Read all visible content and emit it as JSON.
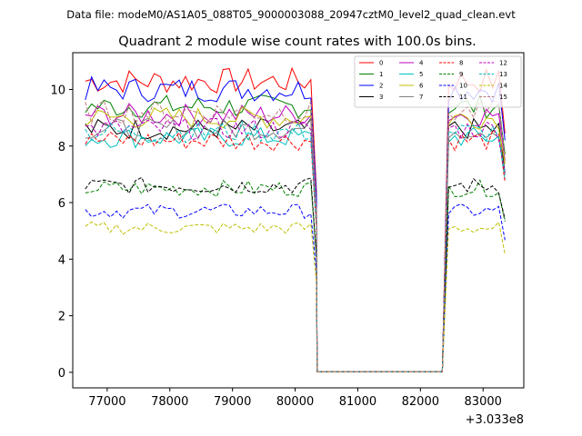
{
  "chart_data": {
    "type": "line",
    "suptitle": "Data file: modeM0/AS1A05_088T05_9000003088_20947cztM0_level2_quad_clean.evt",
    "title": "Quadrant 2 module wise count rates with 100.0s bins.",
    "xlabel": "",
    "ylabel": "",
    "x_offset_label": "+3.033e8",
    "xlim": [
      76450,
      83650
    ],
    "ylim": [
      -0.55,
      11.3
    ],
    "x_ticks": [
      77000,
      78000,
      79000,
      80000,
      81000,
      82000,
      83000
    ],
    "x_tick_labels": [
      "77000",
      "78000",
      "79000",
      "80000",
      "81000",
      "82000",
      "83000"
    ],
    "y_ticks": [
      0,
      2,
      4,
      6,
      8,
      10
    ],
    "y_tick_labels": [
      "0",
      "2",
      "4",
      "6",
      "8",
      "10"
    ],
    "x_start": 76650,
    "step": 100,
    "active_segments": [
      [
        76650,
        80250
      ],
      [
        82450,
        83350
      ]
    ],
    "drop_points": [
      [
        80350,
        0.02
      ],
      [
        82350,
        0.02
      ]
    ],
    "grid": false,
    "legend_position": "top-right",
    "series": [
      {
        "name": "0",
        "color": "#ff0000",
        "dash": "solid",
        "level": 10.3
      },
      {
        "name": "1",
        "color": "#008000",
        "dash": "solid",
        "level": 9.4
      },
      {
        "name": "2",
        "color": "#0000ff",
        "dash": "solid",
        "level": 10.0
      },
      {
        "name": "3",
        "color": "#000000",
        "dash": "solid",
        "level": 8.6
      },
      {
        "name": "4",
        "color": "#bf00bf",
        "dash": "solid",
        "level": 9.1
      },
      {
        "name": "5",
        "color": "#00bfbf",
        "dash": "solid",
        "level": 8.3
      },
      {
        "name": "6",
        "color": "#bfbf00",
        "dash": "solid",
        "level": 9.0
      },
      {
        "name": "7",
        "color": "#808080",
        "dash": "solid",
        "level": 8.6
      },
      {
        "name": "8",
        "color": "#ff0000",
        "dash": "dashed",
        "level": 8.2
      },
      {
        "name": "9",
        "color": "#008000",
        "dash": "dashed",
        "level": 6.5
      },
      {
        "name": "10",
        "color": "#0000ff",
        "dash": "dashed",
        "level": 5.7
      },
      {
        "name": "11",
        "color": "#000000",
        "dash": "dashed",
        "level": 6.6
      },
      {
        "name": "12",
        "color": "#bf00bf",
        "dash": "dashed",
        "level": 8.6
      },
      {
        "name": "13",
        "color": "#00bfbf",
        "dash": "dashed",
        "level": 8.5
      },
      {
        "name": "14",
        "color": "#bfbf00",
        "dash": "dashed",
        "level": 5.1
      },
      {
        "name": "15",
        "color": "#bf7f7f",
        "dash": "dashed",
        "level": 9.2
      }
    ]
  }
}
